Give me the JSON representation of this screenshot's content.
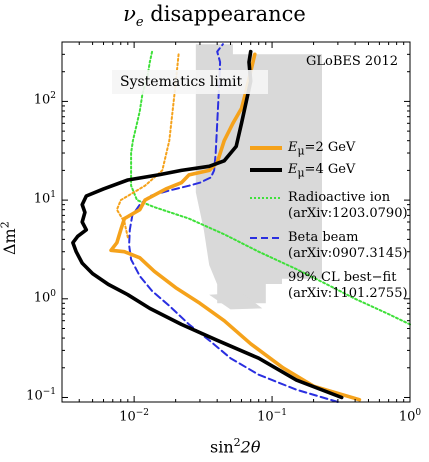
{
  "chart_data": {
    "type": "line",
    "title_prefix": "ν",
    "title_sub": "e",
    "title_suffix": " disappearance",
    "xlabel_prefix": "sin",
    "xlabel_sup": "2",
    "xlabel_suffix": "2θ",
    "ylabel_prefix": "Δm",
    "ylabel_sup": "2",
    "x_scale": "log",
    "y_scale": "log",
    "xlim": [
      0.003,
      1.0
    ],
    "ylim": [
      0.09,
      400
    ],
    "x_tick_labels": [
      {
        "base": "10",
        "exp": "−2",
        "value": 0.01
      },
      {
        "base": "10",
        "exp": "−1",
        "value": 0.1
      },
      {
        "base": "10",
        "exp": "0",
        "value": 1
      }
    ],
    "y_tick_labels": [
      {
        "base": "10",
        "exp": "−1",
        "value": 0.1
      },
      {
        "base": "10",
        "exp": "0",
        "value": 1
      },
      {
        "base": "10",
        "exp": "1",
        "value": 10
      },
      {
        "base": "10",
        "exp": "2",
        "value": 100
      }
    ],
    "annotations": {
      "globes": "GLoBES 2012",
      "systematics": "Systematics limit"
    },
    "series": [
      {
        "name": "Eμ=2 GeV",
        "legend_main": "E",
        "legend_sub": "μ",
        "legend_rest": "=2 GeV",
        "style": "solid",
        "color": "#f5a21b",
        "points": [
          [
            0.43,
            0.095
          ],
          [
            0.2,
            0.13
          ],
          [
            0.12,
            0.2
          ],
          [
            0.07,
            0.35
          ],
          [
            0.045,
            0.6
          ],
          [
            0.03,
            0.9
          ],
          [
            0.02,
            1.3
          ],
          [
            0.014,
            1.9
          ],
          [
            0.011,
            2.6
          ],
          [
            0.0085,
            3.0
          ],
          [
            0.0068,
            3.1
          ],
          [
            0.0075,
            3.7
          ],
          [
            0.008,
            5.0
          ],
          [
            0.0085,
            6.5
          ],
          [
            0.011,
            8.0
          ],
          [
            0.012,
            10
          ],
          [
            0.017,
            13
          ],
          [
            0.022,
            15
          ],
          [
            0.025,
            18
          ],
          [
            0.035,
            20
          ],
          [
            0.04,
            24
          ],
          [
            0.045,
            40
          ],
          [
            0.052,
            60
          ],
          [
            0.06,
            85
          ],
          [
            0.065,
            130
          ],
          [
            0.07,
            200
          ],
          [
            0.075,
            300
          ]
        ]
      },
      {
        "name": "Eμ=2 GeV dotted",
        "style": "dotted",
        "color": "#f5a21b",
        "points": [
          [
            0.009,
            4.2
          ],
          [
            0.0085,
            6
          ],
          [
            0.0075,
            8
          ],
          [
            0.008,
            10
          ],
          [
            0.012,
            14
          ],
          [
            0.016,
            20
          ],
          [
            0.018,
            40
          ],
          [
            0.019,
            80
          ],
          [
            0.02,
            150
          ],
          [
            0.021,
            300
          ]
        ]
      },
      {
        "name": "Eμ=4 GeV",
        "legend_main": "E",
        "legend_sub": "μ",
        "legend_rest": "=4 GeV",
        "style": "solid",
        "color": "#000000",
        "points": [
          [
            0.32,
            0.1
          ],
          [
            0.15,
            0.15
          ],
          [
            0.08,
            0.25
          ],
          [
            0.04,
            0.38
          ],
          [
            0.022,
            0.55
          ],
          [
            0.013,
            0.8
          ],
          [
            0.009,
            1.1
          ],
          [
            0.0065,
            1.4
          ],
          [
            0.005,
            1.8
          ],
          [
            0.0042,
            2.3
          ],
          [
            0.0038,
            3.0
          ],
          [
            0.0036,
            3.7
          ],
          [
            0.0039,
            4.3
          ],
          [
            0.0045,
            5.0
          ],
          [
            0.0042,
            6.0
          ],
          [
            0.0044,
            7.5
          ],
          [
            0.0042,
            9.0
          ],
          [
            0.0045,
            11
          ],
          [
            0.006,
            13
          ],
          [
            0.009,
            16
          ],
          [
            0.015,
            18
          ],
          [
            0.022,
            20
          ],
          [
            0.035,
            22
          ],
          [
            0.045,
            25
          ],
          [
            0.055,
            35
          ],
          [
            0.06,
            60
          ],
          [
            0.065,
            100
          ],
          [
            0.07,
            160
          ],
          [
            0.068,
            250
          ],
          [
            0.07,
            320
          ]
        ]
      },
      {
        "name": "Radioactive ion",
        "legend_line1": "Radioactive ion",
        "legend_line2": "(arXiv:1203.0790)",
        "style": "dotted",
        "color": "#3fe03a",
        "points": [
          [
            1.0,
            0.55
          ],
          [
            0.7,
            0.7
          ],
          [
            0.4,
            1.0
          ],
          [
            0.25,
            1.4
          ],
          [
            0.15,
            2.0
          ],
          [
            0.08,
            3.0
          ],
          [
            0.045,
            4.5
          ],
          [
            0.025,
            6.5
          ],
          [
            0.014,
            8.5
          ],
          [
            0.0105,
            10
          ],
          [
            0.0095,
            14
          ],
          [
            0.0095,
            20
          ],
          [
            0.0095,
            30
          ],
          [
            0.0098,
            40
          ],
          [
            0.0105,
            60
          ],
          [
            0.011,
            80
          ],
          [
            0.0115,
            120
          ],
          [
            0.0125,
            180
          ],
          [
            0.013,
            250
          ],
          [
            0.0135,
            320
          ]
        ]
      },
      {
        "name": "Beta beam",
        "legend_line1": "Beta beam",
        "legend_line2": "(arXiv:0907.3145)",
        "style": "dashed",
        "color": "#2a2fe0",
        "points": [
          [
            0.3,
            0.09
          ],
          [
            0.15,
            0.12
          ],
          [
            0.08,
            0.17
          ],
          [
            0.05,
            0.25
          ],
          [
            0.035,
            0.38
          ],
          [
            0.025,
            0.55
          ],
          [
            0.018,
            0.85
          ],
          [
            0.0135,
            1.2
          ],
          [
            0.011,
            1.7
          ],
          [
            0.0095,
            2.5
          ],
          [
            0.0092,
            3.5
          ],
          [
            0.0093,
            5.0
          ],
          [
            0.0097,
            7.0
          ],
          [
            0.011,
            9.0
          ],
          [
            0.013,
            11
          ],
          [
            0.018,
            12.5
          ],
          [
            0.025,
            14
          ],
          [
            0.03,
            15
          ],
          [
            0.036,
            17
          ],
          [
            0.038,
            20
          ],
          [
            0.039,
            30
          ],
          [
            0.04,
            60
          ],
          [
            0.041,
            120
          ],
          [
            0.042,
            250
          ],
          [
            0.04,
            320
          ],
          [
            0.044,
            380
          ]
        ]
      },
      {
        "name": "99% CL best-fit",
        "legend_line1": "99% CL best−fit",
        "legend_line2": "(arXiv:1101.2755)",
        "style": "fill",
        "color": "#d9d9d9"
      }
    ]
  }
}
